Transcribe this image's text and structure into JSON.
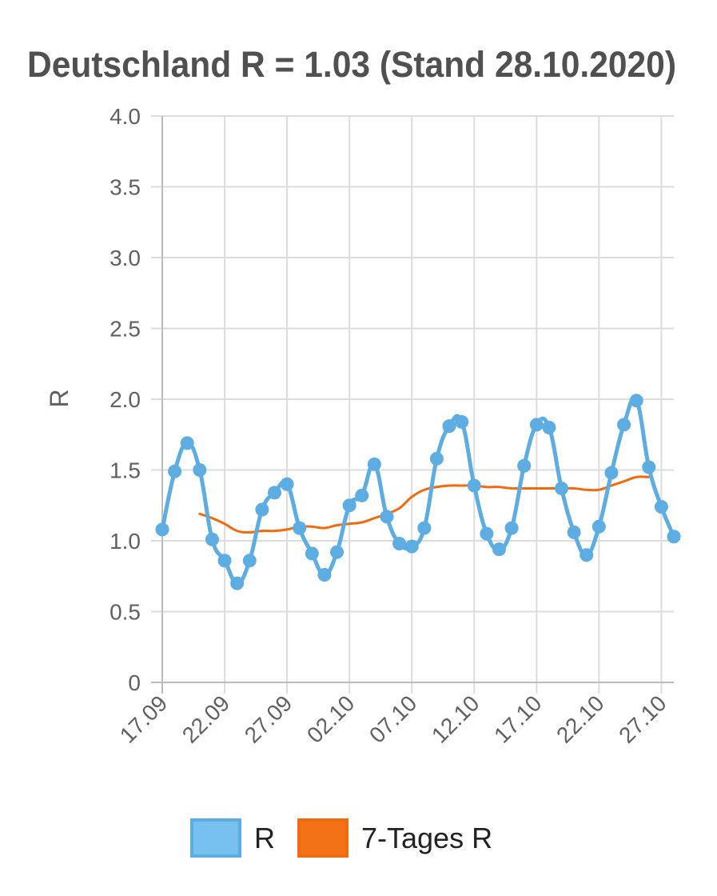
{
  "chart_data": {
    "type": "line",
    "title": "Deutschland R = 1.03 (Stand 28.10.2020)",
    "xlabel": "",
    "ylabel": "R",
    "ylim": [
      0,
      4
    ],
    "yticks": [
      "0",
      "0.5",
      "1.0",
      "1.5",
      "2.0",
      "2.5",
      "3.0",
      "3.5",
      "4.0"
    ],
    "xtick_labels": [
      "17.09",
      "22.09",
      "27.09",
      "02.10",
      "07.10",
      "12.10",
      "17.10",
      "22.10",
      "27.10"
    ],
    "x": [
      "17.09",
      "18.09",
      "19.09",
      "20.09",
      "21.09",
      "22.09",
      "23.09",
      "24.09",
      "25.09",
      "26.09",
      "27.09",
      "28.09",
      "29.09",
      "30.09",
      "01.10",
      "02.10",
      "03.10",
      "04.10",
      "05.10",
      "06.10",
      "07.10",
      "08.10",
      "09.10",
      "10.10",
      "11.10",
      "12.10",
      "13.10",
      "14.10",
      "15.10",
      "16.10",
      "17.10",
      "18.10",
      "19.10",
      "20.10",
      "21.10",
      "22.10",
      "23.10",
      "24.10",
      "25.10",
      "26.10",
      "27.10",
      "28.10"
    ],
    "grid": true,
    "legend_position": "bottom",
    "series": [
      {
        "name": "R",
        "color": "#5dade2",
        "fill": "#76c1ef",
        "markers": true,
        "values": [
          1.08,
          1.49,
          1.69,
          1.5,
          1.01,
          0.86,
          0.7,
          0.86,
          1.22,
          1.34,
          1.4,
          1.09,
          0.91,
          0.76,
          0.92,
          1.25,
          1.32,
          1.54,
          1.17,
          0.98,
          0.96,
          1.09,
          1.58,
          1.81,
          1.84,
          1.39,
          1.05,
          0.94,
          1.09,
          1.53,
          1.82,
          1.8,
          1.37,
          1.06,
          0.9,
          1.1,
          1.48,
          1.82,
          1.99,
          1.52,
          1.24,
          1.03
        ]
      },
      {
        "name": "7-Tages R",
        "color": "#f06b10",
        "fill": "#f47216",
        "markers": false,
        "values": [
          null,
          null,
          null,
          1.19,
          1.16,
          1.12,
          1.07,
          1.06,
          1.07,
          1.07,
          1.08,
          1.1,
          1.1,
          1.09,
          1.11,
          1.12,
          1.13,
          1.16,
          1.19,
          1.23,
          1.31,
          1.36,
          1.38,
          1.39,
          1.39,
          1.39,
          1.38,
          1.38,
          1.37,
          1.37,
          1.37,
          1.37,
          1.37,
          1.37,
          1.36,
          1.36,
          1.39,
          1.42,
          1.45,
          1.45,
          null,
          null
        ]
      }
    ]
  }
}
